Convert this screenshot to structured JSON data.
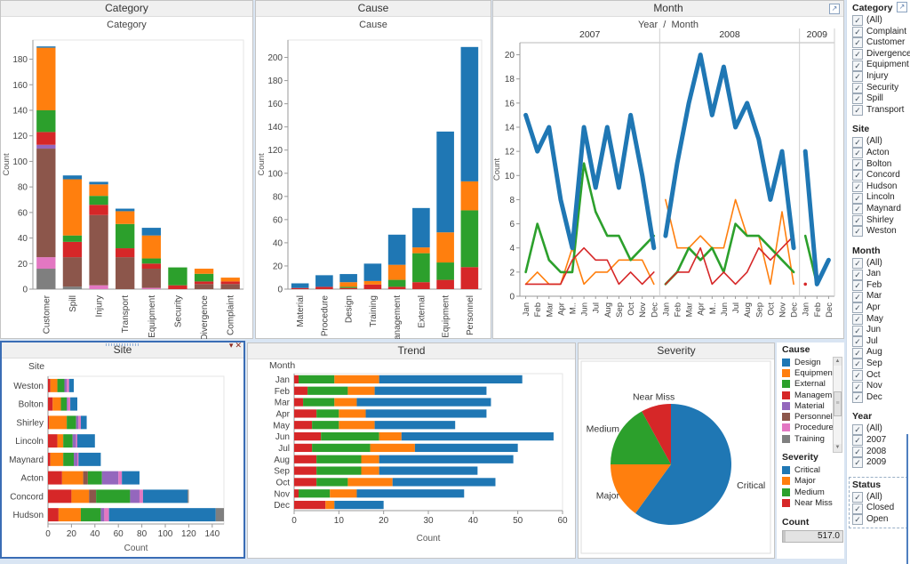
{
  "colors": {
    "blue": "#1f77b4",
    "orange": "#ff7f0e",
    "green": "#2ca02c",
    "red": "#d62728",
    "purple": "#9467bd",
    "brown": "#8c564b",
    "pink": "#e377c2",
    "gray": "#7f7f7f",
    "selection_border": "#3a6db5",
    "canvas": "#d9e5f3",
    "header_bg": "#f0f0f0"
  },
  "icons": {
    "window_menu": "▾",
    "window_close": "✕",
    "scroll_up": "▲",
    "scroll_down": "▼",
    "export": "↗",
    "checkbox_check": "✓",
    "scroll_grip": "≡"
  },
  "windows": {
    "category": {
      "title": "Category",
      "subtitle": "Category"
    },
    "cause": {
      "title": "Cause",
      "subtitle": "Cause"
    },
    "month": {
      "title": "Month",
      "subtitle": "Year  /  Month"
    },
    "site": {
      "title": "Site",
      "subtitle": "Site"
    },
    "trend": {
      "title": "Trend",
      "subtitle": "Month"
    },
    "severity": {
      "title": "Severity"
    }
  },
  "filters": [
    {
      "title": "Category",
      "items": [
        "(All)",
        "Complaint",
        "Customer",
        "Divergence",
        "Equipment",
        "Injury",
        "Security",
        "Spill",
        "Transport"
      ]
    },
    {
      "title": "Site",
      "items": [
        "(All)",
        "Acton",
        "Bolton",
        "Concord",
        "Hudson",
        "Lincoln",
        "Maynard",
        "Shirley",
        "Weston"
      ]
    },
    {
      "title": "Month",
      "items": [
        "(All)",
        "Jan",
        "Feb",
        "Mar",
        "Apr",
        "May",
        "Jun",
        "Jul",
        "Aug",
        "Sep",
        "Oct",
        "Nov",
        "Dec"
      ]
    },
    {
      "title": "Year",
      "items": [
        "(All)",
        "2007",
        "2008",
        "2009"
      ]
    },
    {
      "title": "Status",
      "items": [
        "(All)",
        "Closed",
        "Open"
      ]
    }
  ],
  "legends": {
    "cause": {
      "title": "Cause",
      "items": [
        [
          "Design",
          "blue"
        ],
        [
          "Equipment",
          "orange"
        ],
        [
          "External",
          "green"
        ],
        [
          "Managem..",
          "red"
        ],
        [
          "Material",
          "purple"
        ],
        [
          "Personnel",
          "brown"
        ],
        [
          "Procedure",
          "pink"
        ],
        [
          "Training",
          "gray"
        ]
      ]
    },
    "severity": {
      "title": "Severity",
      "items": [
        [
          "Critical",
          "blue"
        ],
        [
          "Major",
          "orange"
        ],
        [
          "Medium",
          "green"
        ],
        [
          "Near Miss",
          "red"
        ]
      ]
    }
  },
  "count_widget": {
    "label": "Count",
    "value": "517.0"
  },
  "chart_data": [
    {
      "id": "category",
      "type": "bar",
      "orientation": "vertical",
      "stacked": true,
      "title": "Category",
      "ylabel": "Count",
      "ylim": [
        0,
        195
      ],
      "ytick_step": 20,
      "categories": [
        "Customer",
        "Spill",
        "Injury",
        "Transport",
        "Equipment",
        "Security",
        "Divergence",
        "Complaint"
      ],
      "series": [
        {
          "name": "Training",
          "color": "gray",
          "values": [
            16,
            2,
            0,
            0,
            0,
            0,
            0,
            0
          ]
        },
        {
          "name": "Procedure",
          "color": "pink",
          "values": [
            9,
            0,
            3,
            0,
            1,
            0,
            0,
            0
          ]
        },
        {
          "name": "Personnel",
          "color": "brown",
          "values": [
            85,
            23,
            55,
            25,
            15,
            0,
            4,
            4
          ]
        },
        {
          "name": "Material",
          "color": "purple",
          "values": [
            3,
            0,
            0,
            0,
            0,
            0,
            0,
            0
          ]
        },
        {
          "name": "Management",
          "color": "red",
          "values": [
            10,
            12,
            8,
            7,
            4,
            3,
            2,
            2
          ]
        },
        {
          "name": "External",
          "color": "green",
          "values": [
            17,
            5,
            7,
            19,
            4,
            14,
            6,
            0
          ]
        },
        {
          "name": "Equipment",
          "color": "orange",
          "values": [
            49,
            44,
            9,
            10,
            18,
            0,
            4,
            3
          ]
        },
        {
          "name": "Design",
          "color": "blue",
          "values": [
            1,
            3,
            2,
            2,
            6,
            0,
            0,
            0
          ]
        }
      ]
    },
    {
      "id": "cause",
      "type": "bar",
      "orientation": "vertical",
      "stacked": true,
      "title": "Cause",
      "ylabel": "Count",
      "ylim": [
        0,
        215
      ],
      "ytick_step": 20,
      "categories": [
        "Material",
        "Procedure",
        "Design",
        "Training",
        "Management",
        "External",
        "Equipment",
        "Personnel"
      ],
      "series": [
        {
          "name": "Near Miss",
          "color": "red",
          "values": [
            1,
            2,
            1,
            4,
            2,
            6,
            8,
            19
          ]
        },
        {
          "name": "Medium",
          "color": "green",
          "values": [
            0,
            0,
            1,
            0,
            6,
            25,
            15,
            49
          ]
        },
        {
          "name": "Major",
          "color": "orange",
          "values": [
            0,
            0,
            4,
            3,
            13,
            5,
            26,
            25
          ]
        },
        {
          "name": "Critical",
          "color": "blue",
          "values": [
            4,
            10,
            7,
            15,
            26,
            34,
            87,
            116
          ]
        }
      ]
    },
    {
      "id": "month",
      "type": "line",
      "title": "Month",
      "col_header": "Year / Month",
      "ylabel": "Count",
      "ylim": [
        0,
        21
      ],
      "ytick_step": 2,
      "panels": [
        {
          "year": "2007",
          "tick_labels": [
            "Jan",
            "Feb",
            "Mar",
            "Apr",
            "M..",
            "Jun",
            "Jul",
            "Aug",
            "Sep",
            "Oct",
            "Nov",
            "Dec"
          ],
          "series": [
            {
              "name": "Major",
              "color": "orange",
              "width": 1.6,
              "values": [
                1,
                2,
                1,
                1,
                4,
                1,
                2,
                2,
                3,
                3,
                3,
                1
              ]
            },
            {
              "name": "Medium",
              "color": "green",
              "width": 2.6,
              "values": [
                2,
                6,
                3,
                2,
                2,
                11,
                7,
                5,
                5,
                3,
                4,
                5
              ]
            },
            {
              "name": "Near Miss",
              "color": "red",
              "width": 1.6,
              "values": [
                1,
                1,
                1,
                1,
                3,
                4,
                3,
                3,
                1,
                2,
                1,
                2
              ]
            },
            {
              "name": "Critical",
              "color": "blue",
              "width": 5,
              "values": [
                15,
                12,
                14,
                8,
                4,
                14,
                9,
                14,
                9,
                15,
                10,
                4
              ]
            }
          ]
        },
        {
          "year": "2008",
          "tick_labels": [
            "Jan",
            "Feb",
            "Mar",
            "Apr",
            "M..",
            "Jun",
            "Jul",
            "Aug",
            "Sep",
            "Oct",
            "Nov",
            "Dec"
          ],
          "series": [
            {
              "name": "Major",
              "color": "orange",
              "width": 1.6,
              "values": [
                8,
                4,
                4,
                5,
                4,
                4,
                8,
                5,
                5,
                1,
                7,
                1
              ]
            },
            {
              "name": "Medium",
              "color": "green",
              "width": 2.6,
              "values": [
                1,
                2,
                4,
                3,
                4,
                2,
                6,
                5,
                5,
                4,
                3,
                2
              ]
            },
            {
              "name": "Near Miss",
              "color": "red",
              "width": 1.6,
              "values": [
                1,
                2,
                2,
                4,
                1,
                2,
                1,
                2,
                4,
                3,
                4,
                5
              ]
            },
            {
              "name": "Critical",
              "color": "blue",
              "width": 5,
              "values": [
                5,
                11,
                16,
                20,
                15,
                19,
                14,
                16,
                13,
                8,
                12,
                4
              ]
            }
          ]
        },
        {
          "year": "2009",
          "tick_labels": [
            "Jan",
            "Feb",
            "Dec"
          ],
          "series": [
            {
              "name": "Major",
              "color": "orange",
              "width": 1.6,
              "values": [
                null,
                null,
                null
              ]
            },
            {
              "name": "Medium",
              "color": "green",
              "width": 2.6,
              "values": [
                5,
                1,
                null
              ]
            },
            {
              "name": "Near Miss",
              "color": "red",
              "width": 1.6,
              "values": [
                1,
                null,
                null
              ]
            },
            {
              "name": "Critical",
              "color": "blue",
              "width": 5,
              "values": [
                12,
                1,
                3
              ]
            }
          ]
        }
      ]
    },
    {
      "id": "site",
      "type": "bar",
      "orientation": "horizontal",
      "stacked": true,
      "title": "Site",
      "xlabel": "Count",
      "xlim": [
        0,
        150
      ],
      "xtick_step": 20,
      "categories": [
        "Weston",
        "Bolton",
        "Shirley",
        "Lincoln",
        "Maynard",
        "Acton",
        "Concord",
        "Hudson"
      ],
      "series": [
        {
          "name": "Management",
          "color": "red",
          "values": [
            2,
            4,
            1,
            8,
            2,
            12,
            20,
            9
          ]
        },
        {
          "name": "Equipment",
          "color": "orange",
          "values": [
            6,
            7,
            15,
            5,
            11,
            18,
            15,
            19
          ]
        },
        {
          "name": "Personnel",
          "color": "brown",
          "values": [
            0,
            0,
            0,
            0,
            0,
            4,
            6,
            0
          ]
        },
        {
          "name": "External",
          "color": "green",
          "values": [
            6,
            5,
            8,
            8,
            9,
            12,
            29,
            17
          ]
        },
        {
          "name": "Material",
          "color": "purple",
          "values": [
            2,
            1,
            2,
            3,
            3,
            14,
            8,
            3
          ]
        },
        {
          "name": "Procedure",
          "color": "pink",
          "values": [
            2,
            2,
            2,
            1,
            1,
            3,
            3,
            4
          ]
        },
        {
          "name": "Design",
          "color": "blue",
          "values": [
            4,
            6,
            5,
            15,
            19,
            15,
            38,
            91
          ]
        },
        {
          "name": "Training",
          "color": "gray",
          "values": [
            0,
            0,
            0,
            0,
            0,
            0,
            1,
            7
          ]
        }
      ]
    },
    {
      "id": "trend",
      "type": "bar",
      "orientation": "horizontal",
      "stacked": true,
      "title": "Trend",
      "row_header": "Month",
      "xlabel": "Count",
      "xlim": [
        0,
        60
      ],
      "xtick_step": 10,
      "categories": [
        "Jan",
        "Feb",
        "Mar",
        "Apr",
        "May",
        "Jun",
        "Jul",
        "Aug",
        "Sep",
        "Oct",
        "Nov",
        "Dec"
      ],
      "series": [
        {
          "name": "Near Miss",
          "color": "red",
          "values": [
            1,
            3,
            2,
            5,
            4,
            6,
            4,
            5,
            5,
            5,
            1,
            7
          ]
        },
        {
          "name": "Medium",
          "color": "green",
          "values": [
            8,
            9,
            7,
            5,
            6,
            13,
            13,
            10,
            10,
            7,
            7,
            0
          ]
        },
        {
          "name": "Major",
          "color": "orange",
          "values": [
            10,
            6,
            5,
            6,
            8,
            5,
            10,
            4,
            4,
            10,
            6,
            2
          ]
        },
        {
          "name": "Critical",
          "color": "blue",
          "values": [
            32,
            25,
            30,
            27,
            18,
            34,
            23,
            30,
            22,
            23,
            24,
            11
          ]
        }
      ]
    },
    {
      "id": "severity",
      "type": "pie",
      "title": "Severity",
      "start_angle_deg": 0,
      "clockwise": true,
      "slices": [
        {
          "label": "Critical",
          "color": "blue",
          "percent": 60
        },
        {
          "label": "Major",
          "color": "orange",
          "percent": 15
        },
        {
          "label": "Medium",
          "color": "green",
          "percent": 17
        },
        {
          "label": "Near Miss",
          "color": "red",
          "percent": 8
        }
      ]
    }
  ]
}
